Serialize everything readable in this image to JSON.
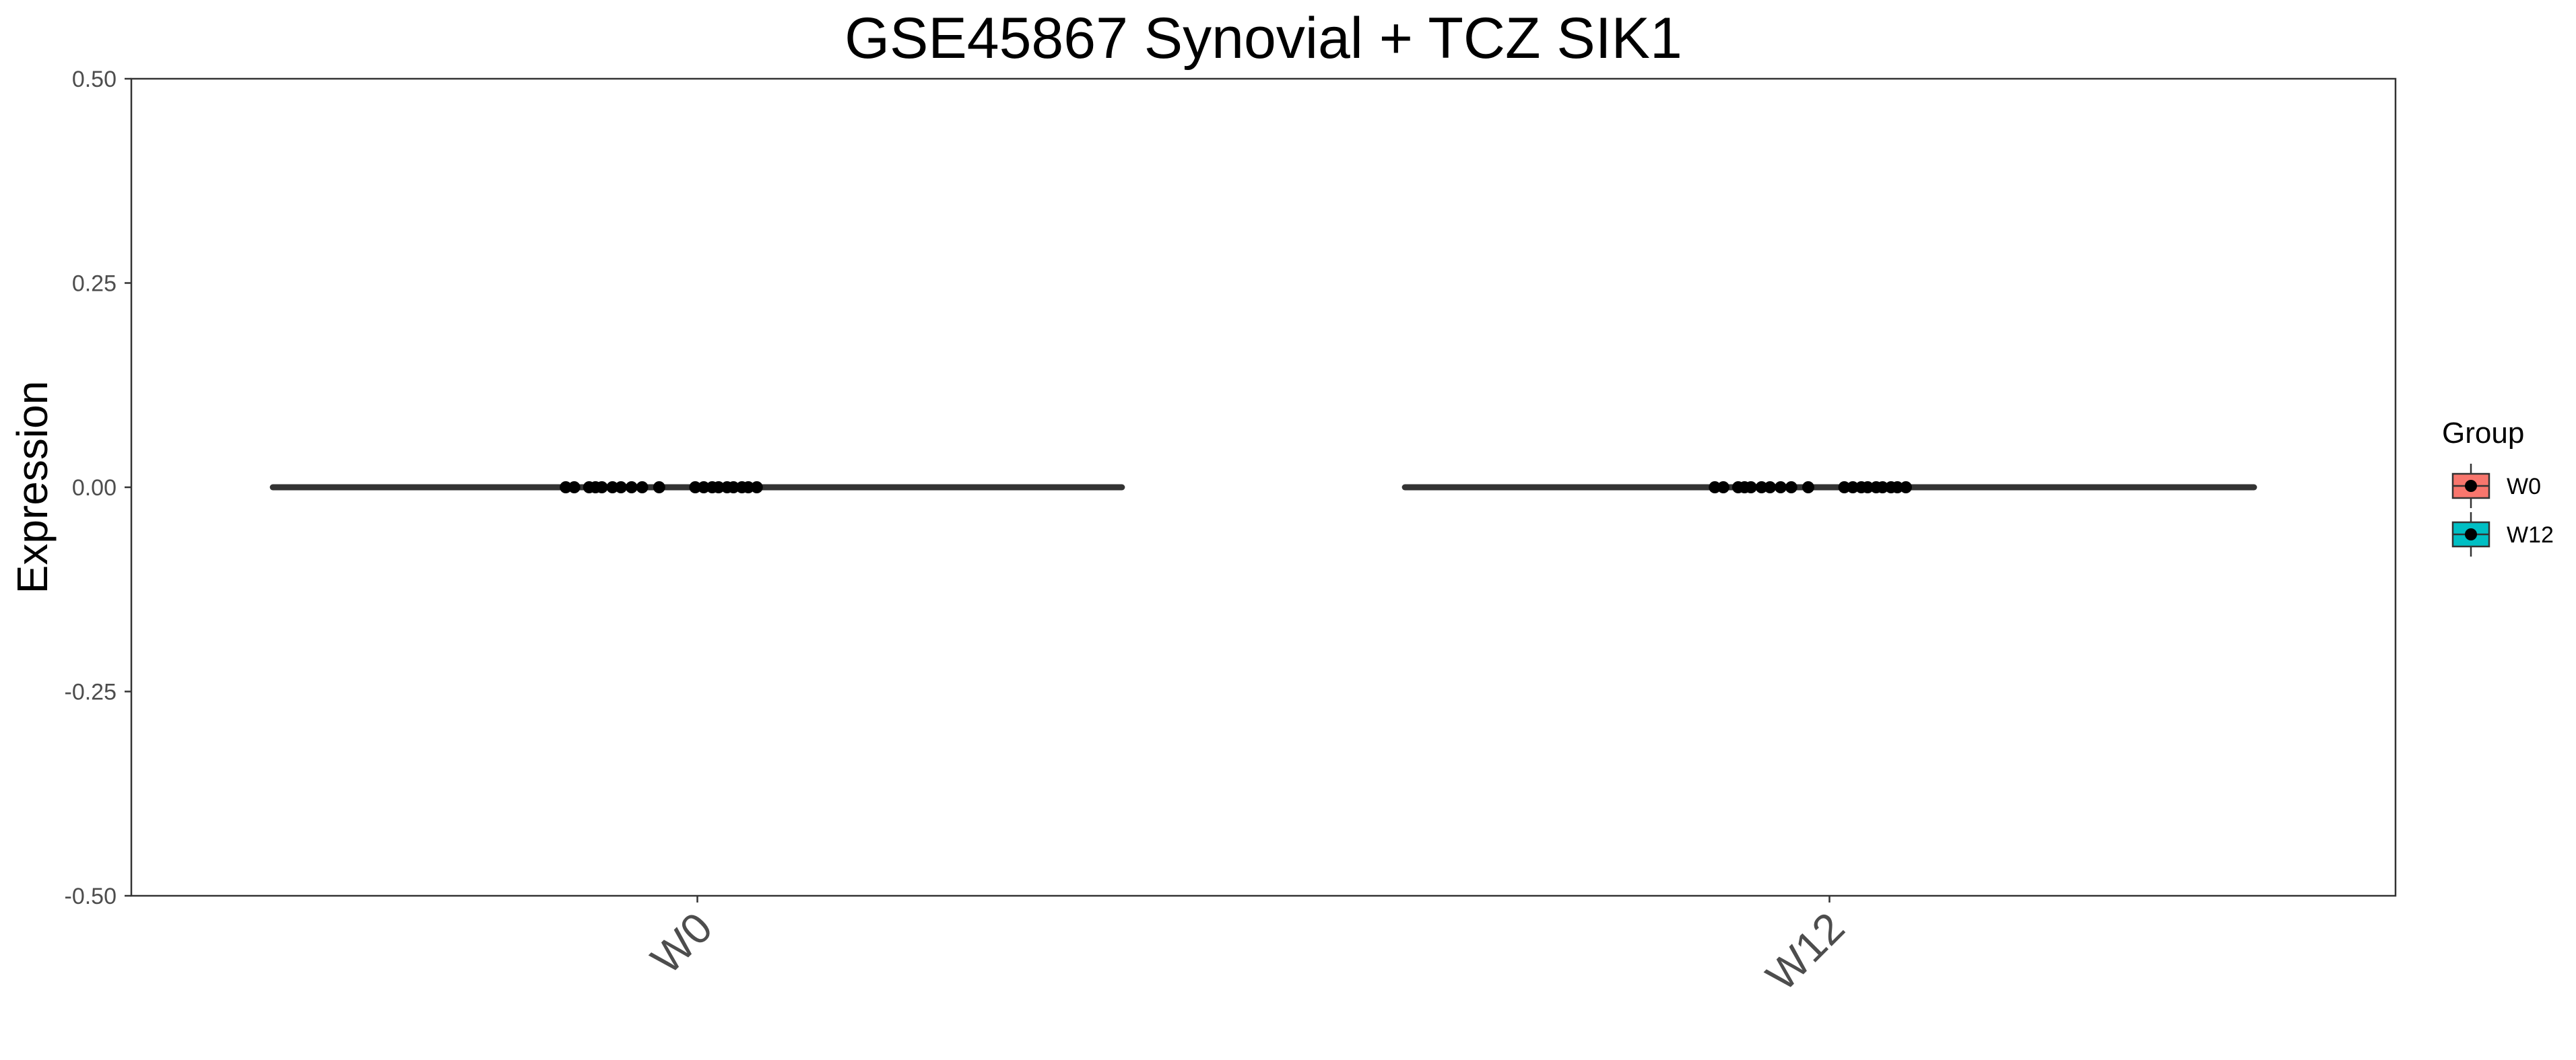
{
  "chart_data": {
    "type": "box",
    "title": "GSE45867 Synovial + TCZ SIK1",
    "xlabel": "",
    "ylabel": "Expression",
    "ylim": [
      -0.5,
      0.5
    ],
    "yticks": [
      0.5,
      0.25,
      0.0,
      -0.25,
      -0.5
    ],
    "ytick_labels": [
      "0.50",
      "0.25",
      "0.00",
      "-0.25",
      "-0.50"
    ],
    "categories": [
      "W0",
      "W12"
    ],
    "grid": false,
    "legend": {
      "title": "Group",
      "position": "right",
      "entries": [
        {
          "label": "W0",
          "color": "#f8766d"
        },
        {
          "label": "W12",
          "color": "#00bfc4"
        }
      ]
    },
    "series": [
      {
        "group": "W0",
        "color": "#f8766d",
        "box": {
          "min": 0,
          "q1": 0,
          "median": 0,
          "q3": 0,
          "max": 0
        },
        "points": [
          0,
          0,
          0,
          0,
          0,
          0,
          0,
          0,
          0,
          0,
          0,
          0,
          0,
          0,
          0,
          0,
          0,
          0,
          0
        ]
      },
      {
        "group": "W12",
        "color": "#00bfc4",
        "box": {
          "min": 0,
          "q1": 0,
          "median": 0,
          "q3": 0,
          "max": 0
        },
        "points": [
          0,
          0,
          0,
          0,
          0,
          0,
          0,
          0,
          0,
          0,
          0,
          0,
          0,
          0,
          0,
          0,
          0,
          0,
          0
        ]
      }
    ]
  }
}
